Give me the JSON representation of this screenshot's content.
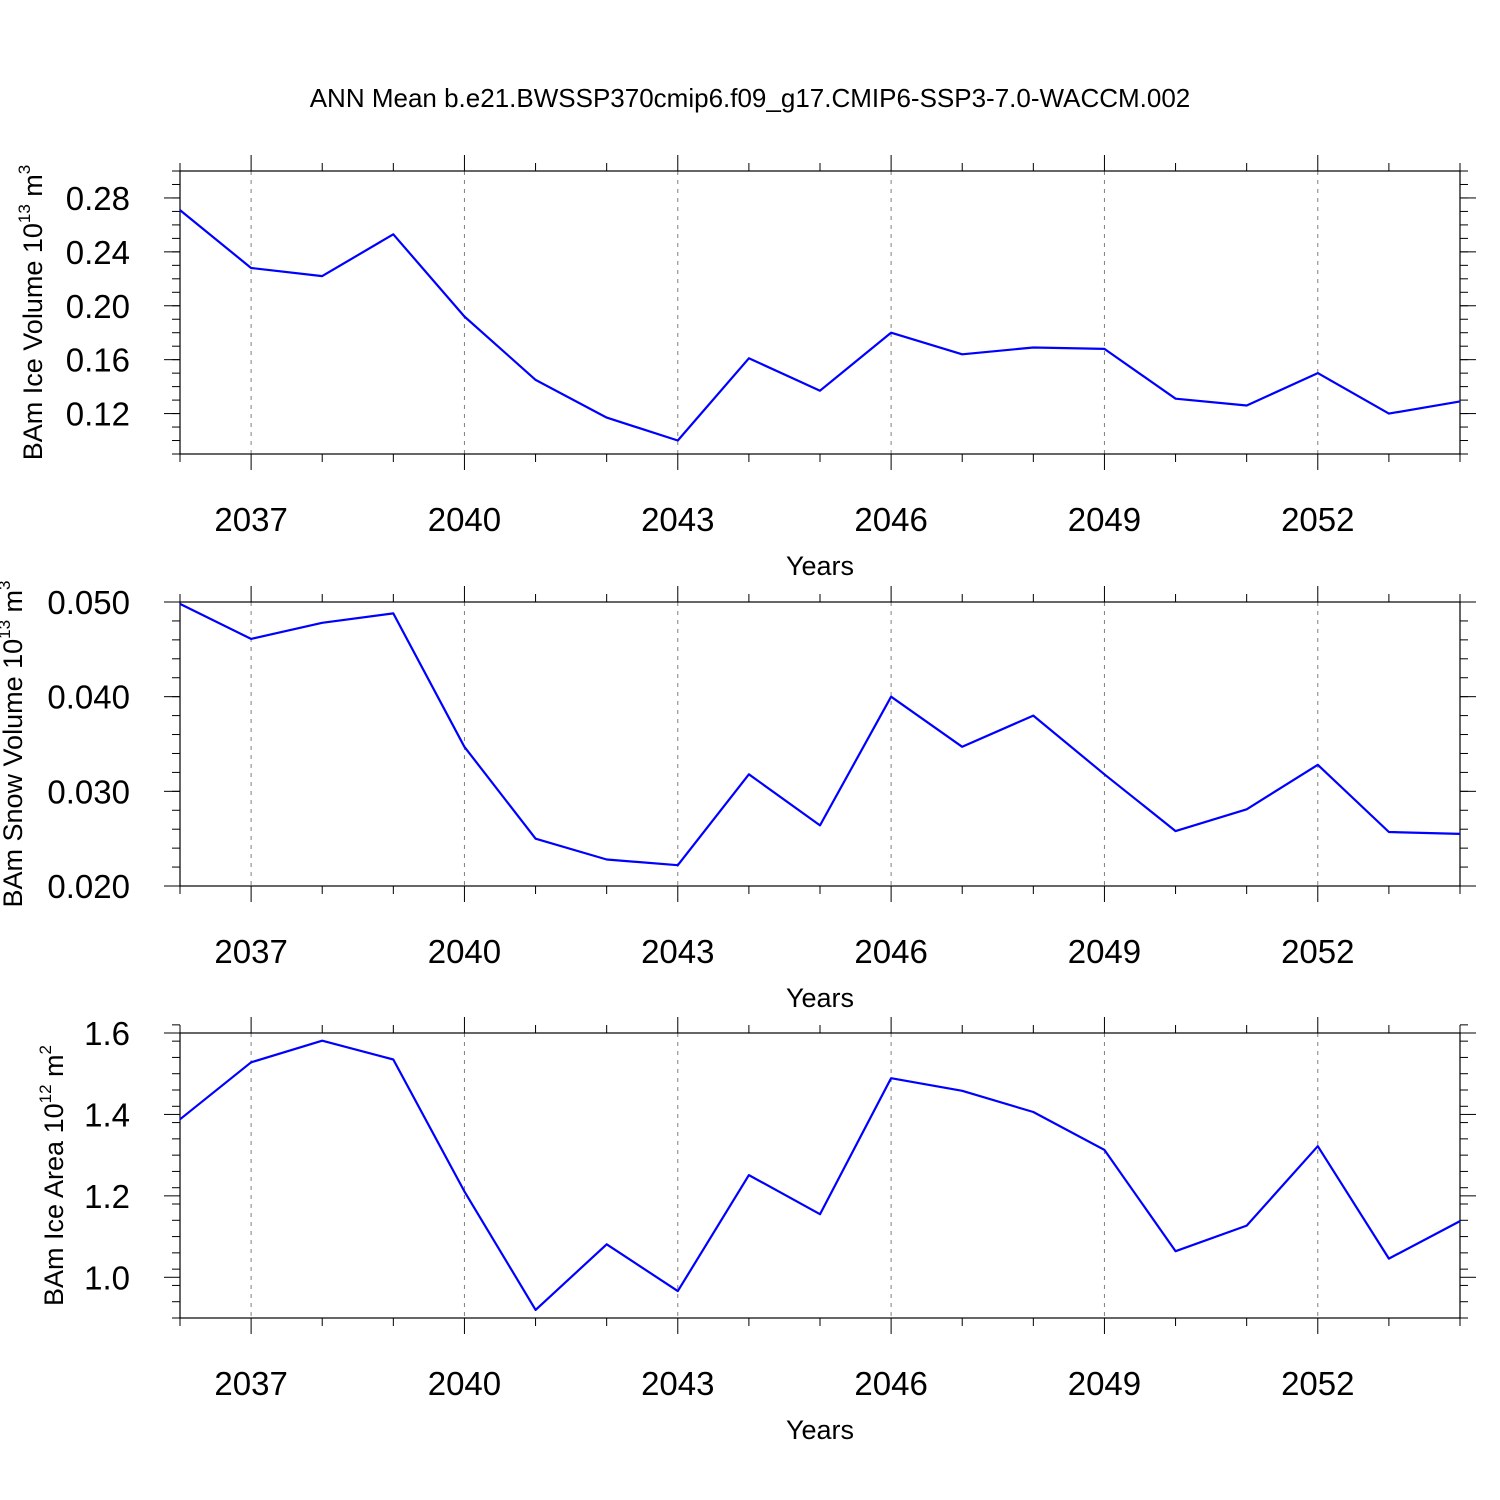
{
  "title": "ANN Mean b.e21.BWSSP370cmip6.f09_g17.CMIP6-SSP3-7.0-WACCM.002",
  "colors": {
    "line": "#0000ff",
    "axis": "#000000",
    "grid": "#808080"
  },
  "chart_data": [
    {
      "type": "line",
      "xlabel": "Years",
      "ylabel": "BAm Ice Volume",
      "yunit_base": "10",
      "yunit_exp": "13",
      "yunit_unit": "m",
      "yunit_unit_exp": "3",
      "x": [
        2036,
        2037,
        2038,
        2039,
        2040,
        2041,
        2042,
        2043,
        2044,
        2045,
        2046,
        2047,
        2048,
        2049,
        2050,
        2051,
        2052,
        2053,
        2054
      ],
      "xlim": [
        2036,
        2054
      ],
      "xticks": [
        2037,
        2040,
        2043,
        2046,
        2049,
        2052
      ],
      "ylim": [
        0.09,
        0.3
      ],
      "yticks": [
        0.12,
        0.16,
        0.2,
        0.24,
        0.28
      ],
      "yticklabels": [
        "0.12",
        "0.16",
        "0.20",
        "0.24",
        "0.28"
      ],
      "yminor_step": 0.01,
      "grid": "x-dashed",
      "series": [
        {
          "values": [
            0.271,
            0.228,
            0.222,
            0.253,
            0.192,
            0.145,
            0.117,
            0.1,
            0.161,
            0.137,
            0.18,
            0.164,
            0.169,
            0.168,
            0.131,
            0.126,
            0.15,
            0.12,
            0.129
          ]
        }
      ]
    },
    {
      "type": "line",
      "xlabel": "Years",
      "ylabel": "BAm Snow Volume",
      "yunit_base": "10",
      "yunit_exp": "13",
      "yunit_unit": "m",
      "yunit_unit_exp": "3",
      "x": [
        2036,
        2037,
        2038,
        2039,
        2040,
        2041,
        2042,
        2043,
        2044,
        2045,
        2046,
        2047,
        2048,
        2049,
        2050,
        2051,
        2052,
        2053,
        2054
      ],
      "xlim": [
        2036,
        2054
      ],
      "xticks": [
        2037,
        2040,
        2043,
        2046,
        2049,
        2052
      ],
      "ylim": [
        0.02,
        0.05
      ],
      "yticks": [
        0.02,
        0.03,
        0.04,
        0.05
      ],
      "yticklabels": [
        "0.020",
        "0.030",
        "0.040",
        "0.050"
      ],
      "yminor_step": 0.002,
      "grid": "x-dashed",
      "series": [
        {
          "values": [
            0.0498,
            0.0461,
            0.0478,
            0.0488,
            0.0347,
            0.025,
            0.0228,
            0.0222,
            0.0318,
            0.0264,
            0.04,
            0.0347,
            0.038,
            0.0318,
            0.0258,
            0.0281,
            0.0328,
            0.0257,
            0.0255
          ]
        }
      ]
    },
    {
      "type": "line",
      "xlabel": "Years",
      "ylabel": "BAm Ice Area",
      "yunit_base": "10",
      "yunit_exp": "12",
      "yunit_unit": "m",
      "yunit_unit_exp": "2",
      "x": [
        2036,
        2037,
        2038,
        2039,
        2040,
        2041,
        2042,
        2043,
        2044,
        2045,
        2046,
        2047,
        2048,
        2049,
        2050,
        2051,
        2052,
        2053,
        2054
      ],
      "xlim": [
        2036,
        2054
      ],
      "xticks": [
        2037,
        2040,
        2043,
        2046,
        2049,
        2052
      ],
      "ylim": [
        0.9,
        1.6
      ],
      "yticks": [
        1.0,
        1.2,
        1.4,
        1.6
      ],
      "yticklabels": [
        "1.0",
        "1.2",
        "1.4",
        "1.6"
      ],
      "yminor_step": 0.04,
      "grid": "x-dashed",
      "series": [
        {
          "values": [
            1.388,
            1.528,
            1.581,
            1.535,
            1.211,
            0.92,
            1.081,
            0.966,
            1.251,
            1.155,
            1.489,
            1.458,
            1.406,
            1.313,
            1.064,
            1.127,
            1.322,
            1.046,
            1.138
          ]
        }
      ]
    }
  ]
}
